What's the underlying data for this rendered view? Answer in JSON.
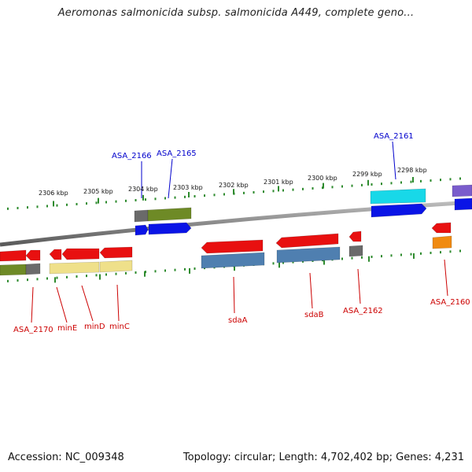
{
  "title": "Aeromonas salmonicida subsp. salmonicida A449, complete geno...",
  "footer": {
    "accession": "Accession: NC_009348",
    "summary": "Topology: circular; Length: 4,702,402 bp; Genes: 4,231"
  },
  "scale_labels": [
    "2306 kbp",
    "2305 kbp",
    "2304 kbp",
    "2303 kbp",
    "2302 kbp",
    "2301 kbp",
    "2300 kbp",
    "2299 kbp",
    "2298 kbp"
  ],
  "top_gene_labels": [
    "ASA_2166",
    "ASA_2165",
    "ASA_2161"
  ],
  "bottom_gene_labels": [
    "ASA_2170",
    "minE",
    "minD",
    "minC",
    "sdaA",
    "sdaB",
    "ASA_2162",
    "ASA_2160"
  ],
  "colors": {
    "forward_label": "#0000cc",
    "reverse_label": "#cc0000",
    "backbone": "#8a8a8a",
    "tick": "#2e8b2e",
    "red": "#e81010",
    "blue": "#0a14e6",
    "olive": "#6e8a26",
    "steelblue": "#4f7fb0",
    "khaki": "#efe08a",
    "cyan": "#18d8e8",
    "gray": "#6a6a6a",
    "orange": "#f08a10",
    "purple": "#7a5ccc"
  }
}
